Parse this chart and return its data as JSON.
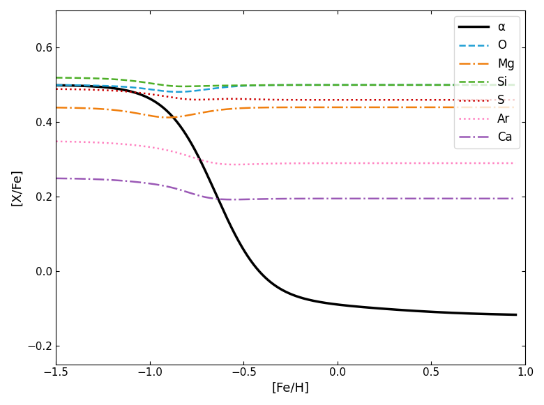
{
  "title": "",
  "xlabel": "[Fe/H]",
  "ylabel": "[X/Fe]",
  "xlim": [
    -1.5,
    1.0
  ],
  "ylim": [
    -0.25,
    0.7
  ],
  "line_styles": [
    {
      "color": "black",
      "linestyle": "-",
      "linewidth": 2.5,
      "label": "α"
    },
    {
      "color": "#1e9fd4",
      "linestyle": "--",
      "linewidth": 1.8,
      "label": "O"
    },
    {
      "color": "#f07f0e",
      "linestyle": "-.",
      "linewidth": 1.8,
      "label": "Mg"
    },
    {
      "color": "#4daf27",
      "linestyle": "--",
      "linewidth": 1.8,
      "label": "Si"
    },
    {
      "color": "#cc0000",
      "linestyle": ":",
      "linewidth": 1.8,
      "label": "S"
    },
    {
      "color": "#ff80c0",
      "linestyle": ":",
      "linewidth": 1.8,
      "label": "Ar"
    },
    {
      "color": "#9b59b6",
      "linestyle": "-.",
      "linewidth": 1.8,
      "label": "Ca"
    }
  ],
  "background_color": "white"
}
